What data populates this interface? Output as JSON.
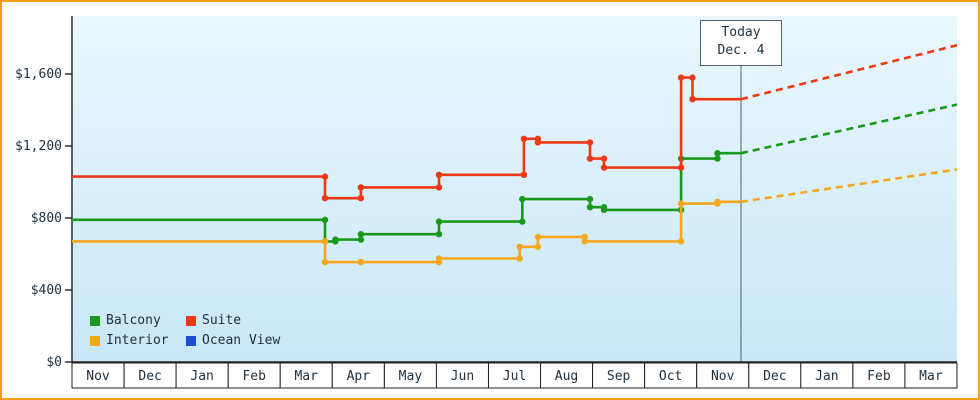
{
  "page": {
    "frame_color": "#fb9a18",
    "plot_bg_top": "#eaf7fe",
    "plot_bg_bottom": "#c9e7f7",
    "axis_color": "#222222",
    "text_color": "#1d3040",
    "today_line_color": "#51616e"
  },
  "y_axis": {
    "labels": [
      "$0",
      "$400",
      "$800",
      "$1,200",
      "$1,600"
    ],
    "values": [
      0,
      400,
      800,
      1200,
      1600
    ]
  },
  "chart_data": {
    "type": "line",
    "subtype": "stepped-price-history-with-projection",
    "x_months": [
      "Nov",
      "Dec",
      "Jan",
      "Feb",
      "Mar",
      "Apr",
      "May",
      "Jun",
      "Jul",
      "Aug",
      "Sep",
      "Oct",
      "Nov",
      "Dec",
      "Jan",
      "Feb",
      "Mar"
    ],
    "ylim": [
      0,
      1800
    ],
    "y_ticks": [
      0,
      400,
      800,
      1200,
      1600
    ],
    "grid": false,
    "legend_position": "bottom-left",
    "today": {
      "label_line1": "Today",
      "label_line2": "Dec. 4",
      "month_index": 12.85
    },
    "series": [
      {
        "name": "Balcony",
        "color": "#18991b",
        "points": [
          [
            0,
            790
          ],
          [
            4.86,
            670
          ],
          [
            5.06,
            680
          ],
          [
            5.55,
            710
          ],
          [
            7.05,
            780
          ],
          [
            8.65,
            905
          ],
          [
            9.95,
            860
          ],
          [
            10.22,
            845
          ],
          [
            11.7,
            1130
          ],
          [
            12.4,
            1160
          ]
        ],
        "projection_end": [
          17,
          1430
        ]
      },
      {
        "name": "Suite",
        "color": "#ee3914",
        "points": [
          [
            0,
            1030
          ],
          [
            4.86,
            910
          ],
          [
            5.55,
            970
          ],
          [
            7.05,
            1040
          ],
          [
            8.68,
            1240
          ],
          [
            8.95,
            1220
          ],
          [
            9.95,
            1130
          ],
          [
            10.22,
            1080
          ],
          [
            11.7,
            1580
          ],
          [
            11.92,
            1460
          ]
        ],
        "projection_end": [
          17,
          1760
        ]
      },
      {
        "name": "Interior",
        "color": "#f4a71d",
        "points": [
          [
            0,
            670
          ],
          [
            4.86,
            555
          ],
          [
            5.55,
            555
          ],
          [
            7.05,
            575
          ],
          [
            8.6,
            640
          ],
          [
            8.95,
            695
          ],
          [
            9.85,
            670
          ],
          [
            11.7,
            880
          ],
          [
            12.4,
            890
          ]
        ],
        "projection_end": [
          17,
          1070
        ]
      },
      {
        "name": "Ocean View",
        "color": "#1a4fd6",
        "points": [],
        "projection_end": null
      }
    ]
  }
}
